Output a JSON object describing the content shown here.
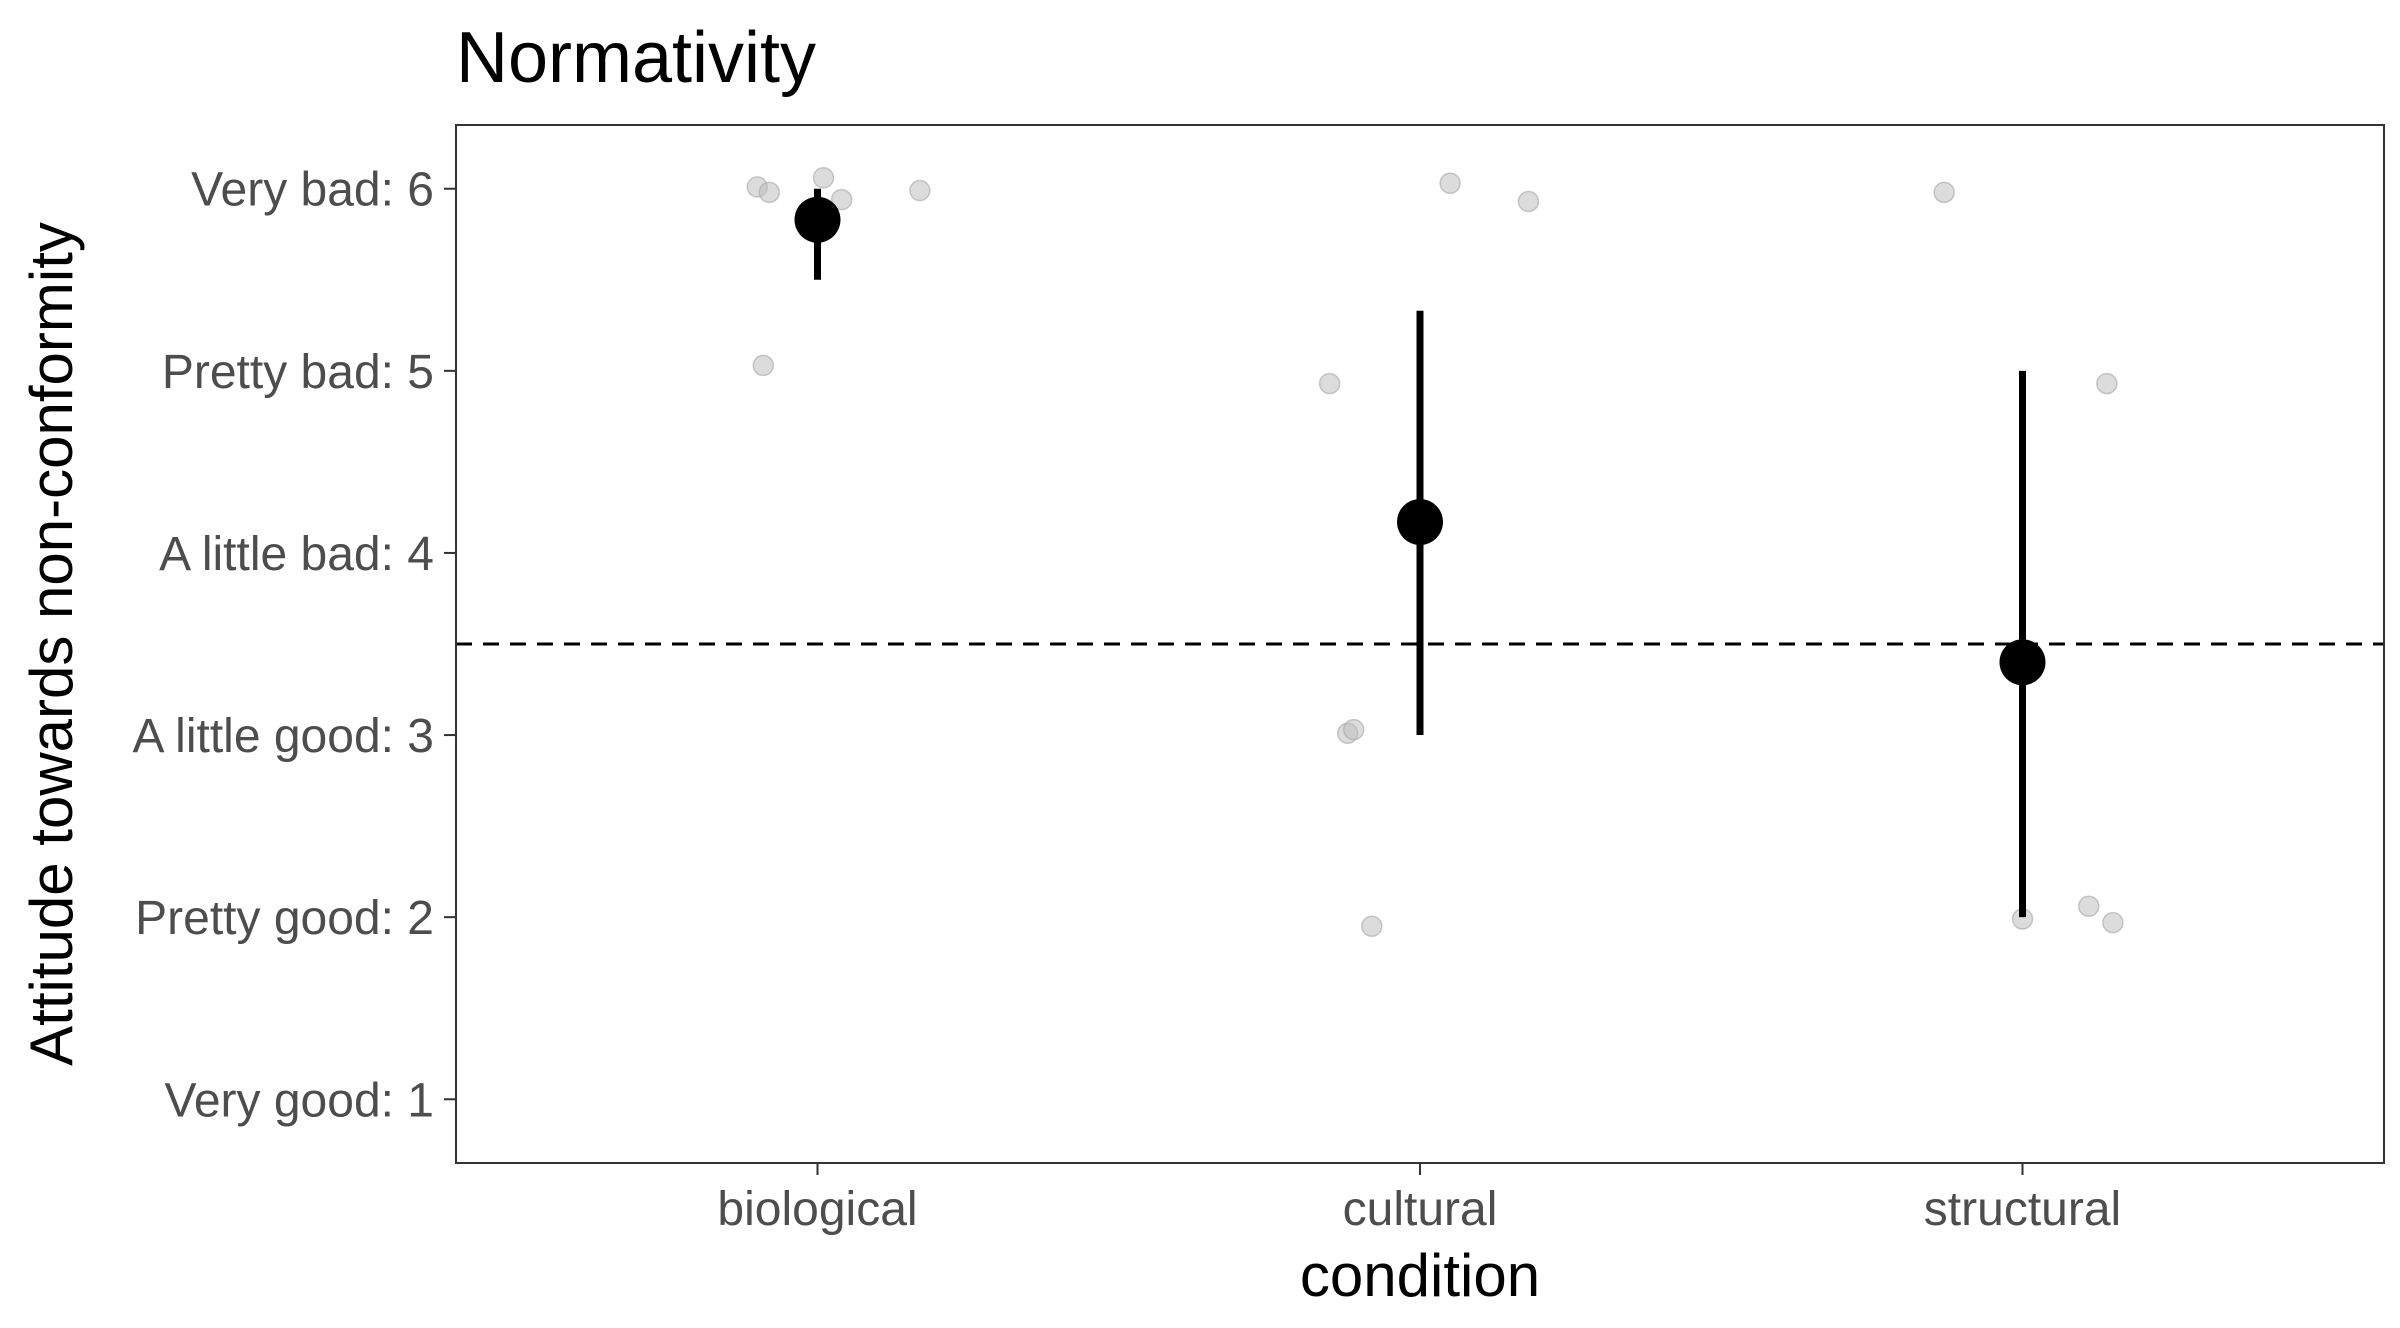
{
  "chart_data": {
    "type": "scatter",
    "title": "Normativity",
    "xlabel": "condition",
    "ylabel": "Attitude towards non-conformity",
    "categories": [
      "biological",
      "cultural",
      "structural"
    ],
    "y_ticks": [
      {
        "value": 1,
        "label": "Very good: 1"
      },
      {
        "value": 2,
        "label": "Pretty good: 2"
      },
      {
        "value": 3,
        "label": "A little good: 3"
      },
      {
        "value": 4,
        "label": "A little bad: 4"
      },
      {
        "value": 5,
        "label": "Pretty bad: 5"
      },
      {
        "value": 6,
        "label": "Very bad: 6"
      }
    ],
    "ylim": [
      0.65,
      6.35
    ],
    "x_range": [
      0.4,
      3.6
    ],
    "reference_line": {
      "y": 3.5,
      "style": "dashed"
    },
    "summary": [
      {
        "category": "biological",
        "mean": 5.83,
        "low": 5.5,
        "high": 6.0
      },
      {
        "category": "cultural",
        "mean": 4.17,
        "low": 3.0,
        "high": 5.33
      },
      {
        "category": "structural",
        "mean": 3.4,
        "low": 2.0,
        "high": 5.0
      }
    ],
    "raw_points": [
      {
        "x": 0.9,
        "y": 6.01
      },
      {
        "x": 0.92,
        "y": 5.98
      },
      {
        "x": 1.01,
        "y": 6.06
      },
      {
        "x": 1.04,
        "y": 5.94
      },
      {
        "x": 1.17,
        "y": 5.99
      },
      {
        "x": 0.91,
        "y": 5.03
      },
      {
        "x": 1.85,
        "y": 4.93
      },
      {
        "x": 2.05,
        "y": 6.03
      },
      {
        "x": 2.18,
        "y": 5.93
      },
      {
        "x": 1.88,
        "y": 3.01
      },
      {
        "x": 1.89,
        "y": 3.03
      },
      {
        "x": 1.92,
        "y": 1.95
      },
      {
        "x": 2.87,
        "y": 5.98
      },
      {
        "x": 3.14,
        "y": 4.93
      },
      {
        "x": 3.0,
        "y": 1.99
      },
      {
        "x": 3.11,
        "y": 2.06
      },
      {
        "x": 3.15,
        "y": 1.97
      }
    ],
    "grid": false,
    "legend": "none",
    "colors": {
      "summary": "#000000",
      "raw_points": "#bfbfbf",
      "panel_border": "#333333",
      "tick_text": "#4d4d4d"
    }
  }
}
